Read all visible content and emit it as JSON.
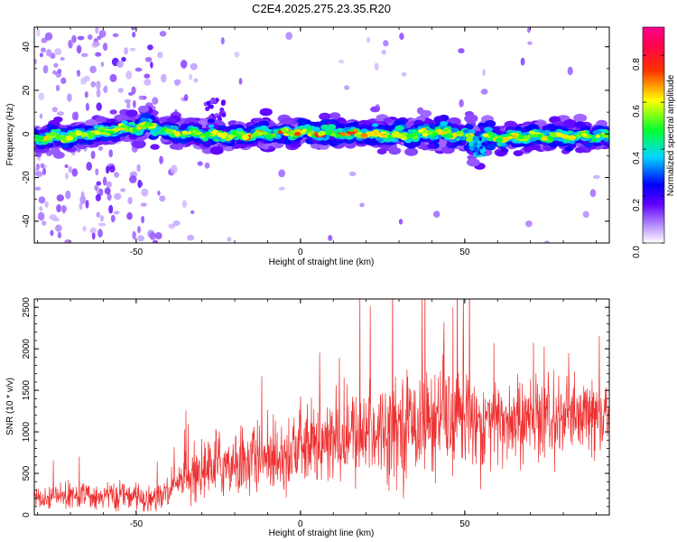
{
  "title": "C2E4.2025.275.23.35.R20",
  "chart_data": [
    {
      "type": "heatmap",
      "name": "spectrogram",
      "xlabel": "Height of straight line (km)",
      "ylabel": "Frequency (Hz)",
      "xlim": [
        -81,
        94
      ],
      "ylim": [
        -50,
        49
      ],
      "xticks": [
        -50,
        0,
        50
      ],
      "yticks": [
        -40,
        -20,
        0,
        20,
        40
      ],
      "colorbar": {
        "label": "Normalized spectral amplitude",
        "range": [
          0,
          0.92
        ],
        "ticks": [
          "0.0",
          "0.2",
          "0.4",
          "0.6",
          "0.8"
        ],
        "colormap": [
          "#ffffff",
          "#a070ff",
          "#0000ff",
          "#00e0ff",
          "#00ff40",
          "#ffff00",
          "#ff0000",
          "#ff0090"
        ]
      },
      "ridge": {
        "description_points_x": [
          -81,
          -70,
          -60,
          -50,
          -45,
          -42,
          -30,
          -20,
          -10,
          0,
          10,
          20,
          30,
          40,
          50,
          54,
          56,
          60,
          70,
          80,
          94
        ],
        "frequency_hz": [
          -2,
          -1,
          1,
          3,
          4,
          1,
          0,
          -1,
          0,
          1,
          0,
          0,
          -1,
          1,
          0,
          -5,
          -1,
          -2,
          -1,
          -1,
          -1
        ]
      }
    },
    {
      "type": "line",
      "name": "snr",
      "xlabel": "Height of straight line (km)",
      "ylabel": "SNR (10 * v/v)",
      "xlim": [
        -81,
        94
      ],
      "ylim": [
        0,
        2600
      ],
      "xticks": [
        -50,
        0,
        50
      ],
      "yticks": [
        0,
        500,
        1000,
        1500,
        2000,
        2500
      ],
      "color": "#ee3030",
      "trend_x": [
        -81,
        -60,
        -45,
        -40,
        -35,
        -25,
        -10,
        0,
        10,
        20,
        30,
        40,
        50,
        60,
        70,
        80,
        94
      ],
      "trend_y": [
        220,
        230,
        200,
        260,
        450,
        600,
        700,
        800,
        870,
        1000,
        1100,
        1150,
        1150,
        1120,
        1120,
        1150,
        1170
      ],
      "noise_amp_x": [
        -81,
        -45,
        -40,
        -30,
        0,
        20,
        40,
        60,
        94
      ],
      "noise_amp_y": [
        110,
        110,
        150,
        260,
        320,
        380,
        420,
        380,
        300
      ]
    }
  ]
}
